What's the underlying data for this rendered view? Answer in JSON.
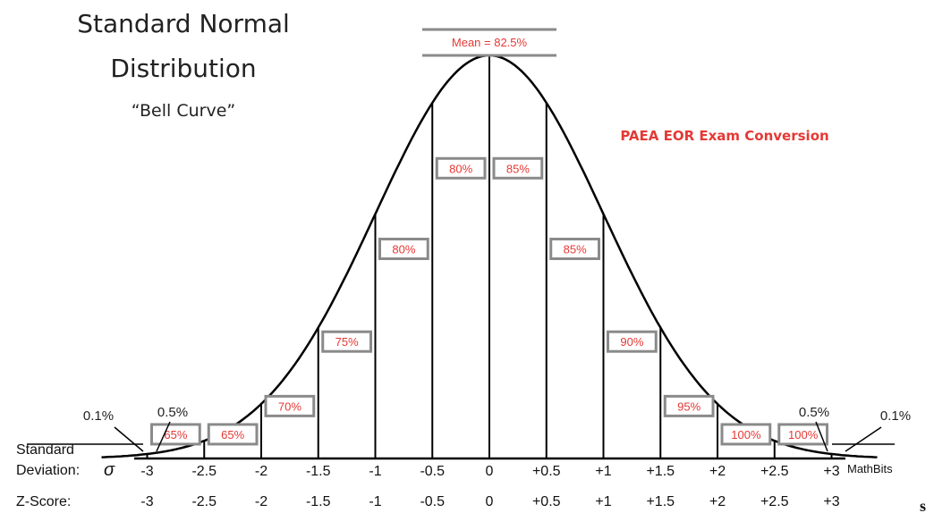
{
  "title_line1": "Standard Normal",
  "title_line2": "Distribution",
  "subtitle": "“Bell Curve”",
  "annotation": "PAEA EOR Exam Conversion",
  "credit": "MathBits",
  "tail_char": "s",
  "mean_label": "Mean = 82.5%",
  "tail_percents": {
    "left_outer": "0.1%",
    "left_inner": "0.5%",
    "right_inner": "0.5%",
    "right_outer": "0.1%"
  },
  "row_labels": {
    "sd_line1": "Standard",
    "sd_line2": "Deviation:",
    "sigma": "σ",
    "zscore": "Z-Score:"
  },
  "sd_ticks": [
    "-3",
    "-2.5",
    "-2",
    "-1.5",
    "-1",
    "-0.5",
    "0",
    "+0.5",
    "+1",
    "+1.5",
    "+2",
    "+2.5",
    "+3"
  ],
  "z_ticks": [
    "-3",
    "-2.5",
    "-2",
    "-1.5",
    "-1",
    "-0.5",
    "0",
    "+0.5",
    "+1",
    "+1.5",
    "+2",
    "+2.5",
    "+3"
  ],
  "divider_z": [
    -3,
    -2.5,
    -2,
    -1.5,
    -1,
    -0.5,
    0,
    0.5,
    1,
    1.5,
    2,
    2.5,
    3
  ],
  "conversion_boxes": [
    {
      "z_from": -3,
      "z_to": -2.5,
      "label": "65%",
      "level": 0.06
    },
    {
      "z_from": -2.5,
      "z_to": -2,
      "label": "65%",
      "level": 0.06
    },
    {
      "z_from": -2,
      "z_to": -1.5,
      "label": "70%",
      "level": 0.13
    },
    {
      "z_from": -1.5,
      "z_to": -1,
      "label": "75%",
      "level": 0.29
    },
    {
      "z_from": -1,
      "z_to": -0.5,
      "label": "80%",
      "level": 0.52
    },
    {
      "z_from": -0.5,
      "z_to": 0,
      "label": "80%",
      "level": 0.72
    },
    {
      "z_from": 0,
      "z_to": 0.5,
      "label": "85%",
      "level": 0.72
    },
    {
      "z_from": 0.5,
      "z_to": 1,
      "label": "85%",
      "level": 0.52
    },
    {
      "z_from": 1,
      "z_to": 1.5,
      "label": "90%",
      "level": 0.29
    },
    {
      "z_from": 1.5,
      "z_to": 2,
      "label": "95%",
      "level": 0.13
    },
    {
      "z_from": 2,
      "z_to": 2.5,
      "label": "100%",
      "level": 0.06
    },
    {
      "z_from": 2.5,
      "z_to": 3,
      "label": "100%",
      "level": 0.06
    }
  ],
  "colors": {
    "accent": "#e53935",
    "box_border": "#8a8a8a",
    "curve": "#000000"
  }
}
